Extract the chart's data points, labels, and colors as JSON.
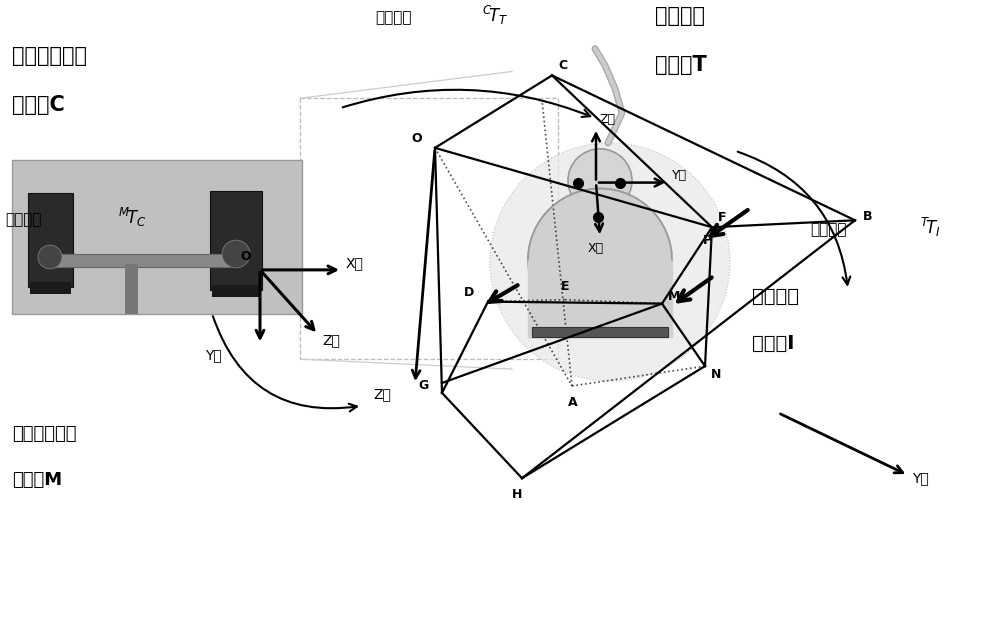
{
  "bg_color": "#ffffff",
  "label_c_line1": "光学定位设备",
  "label_c_line2": "坐标系C",
  "label_t_line1": "超声探头",
  "label_t_line2": "坐标系T",
  "label_i_line1": "超声图像",
  "label_i_line2": "坐标系I",
  "label_m_line1": "立体标定模板",
  "label_m_2": "坐标系M",
  "transform_ct_text": "变换矩阵",
  "transform_ti_text": "变换矩阵",
  "transform_mc_text": "变换矩阵",
  "x_axis": "X轴",
  "y_axis": "Y轴",
  "z_axis": "Z轴",
  "pt_O": "O",
  "pt_C": "C",
  "pt_B": "B",
  "pt_D": "D",
  "pt_E": "E",
  "pt_F": "F",
  "pt_G": "G",
  "pt_H": "H",
  "pt_A": "A",
  "pt_N": "N",
  "pt_M": "M",
  "pt_P": "P"
}
